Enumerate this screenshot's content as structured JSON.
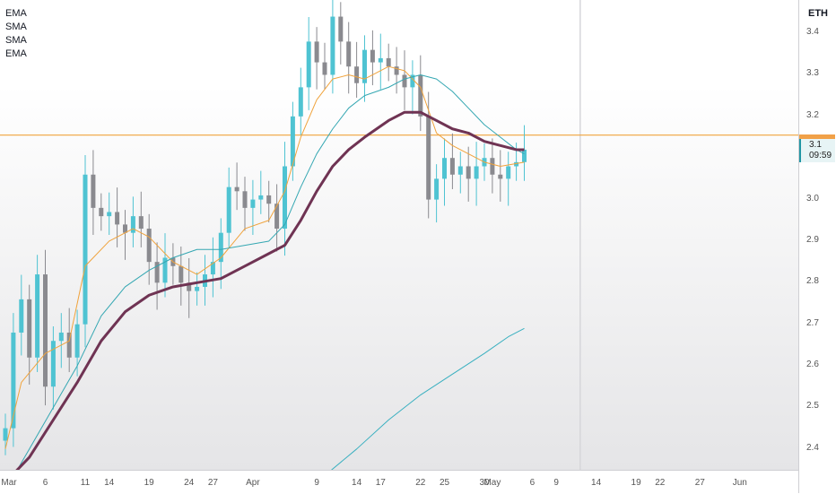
{
  "legend": [
    "EMA",
    "SMA",
    "SMA",
    "EMA"
  ],
  "ticker": "ETH",
  "last_price": "3.1",
  "countdown": "09:59",
  "chart_data": {
    "type": "candlestick",
    "title": "",
    "price_ticks": [
      {
        "value": 3.4,
        "label": "3.4"
      },
      {
        "value": 3.3,
        "label": "3.3"
      },
      {
        "value": 3.2,
        "label": "3.2"
      },
      {
        "value": 3.0,
        "label": "3.0"
      },
      {
        "value": 2.9,
        "label": "2.9"
      },
      {
        "value": 2.8,
        "label": "2.8"
      },
      {
        "value": 2.7,
        "label": "2.7"
      },
      {
        "value": 2.6,
        "label": "2.6"
      },
      {
        "value": 2.5,
        "label": "2.5"
      },
      {
        "value": 2.4,
        "label": "2.4"
      }
    ],
    "ylim": [
      2.35,
      3.48
    ],
    "time_ticks": [
      {
        "day": 0,
        "label": "Mar"
      },
      {
        "day": 5,
        "label": "6"
      },
      {
        "day": 10,
        "label": "11"
      },
      {
        "day": 13,
        "label": "14"
      },
      {
        "day": 18,
        "label": "19"
      },
      {
        "day": 23,
        "label": "24"
      },
      {
        "day": 26,
        "label": "27"
      },
      {
        "day": 31,
        "label": "Apr"
      },
      {
        "day": 39,
        "label": "9"
      },
      {
        "day": 44,
        "label": "14"
      },
      {
        "day": 47,
        "label": "17"
      },
      {
        "day": 52,
        "label": "22"
      },
      {
        "day": 55,
        "label": "25"
      },
      {
        "day": 60,
        "label": "30"
      },
      {
        "day": 61,
        "label": "May"
      },
      {
        "day": 66,
        "label": "6"
      },
      {
        "day": 69,
        "label": "9"
      },
      {
        "day": 74,
        "label": "14"
      },
      {
        "day": 79,
        "label": "19"
      },
      {
        "day": 82,
        "label": "22"
      },
      {
        "day": 87,
        "label": "27"
      },
      {
        "day": 92,
        "label": "Jun"
      }
    ],
    "horizontal_line": 3.155,
    "vertical_marker_day": 72,
    "close_path": [
      [
        0,
        2.45
      ],
      [
        1,
        2.68
      ],
      [
        2,
        2.76
      ],
      [
        3,
        2.62
      ],
      [
        4,
        2.82
      ],
      [
        5,
        2.55
      ],
      [
        6,
        2.66
      ],
      [
        7,
        2.68
      ],
      [
        8,
        2.62
      ],
      [
        9,
        2.7
      ],
      [
        10,
        3.06
      ],
      [
        11,
        2.98
      ],
      [
        12,
        2.96
      ],
      [
        13,
        2.97
      ],
      [
        14,
        2.94
      ],
      [
        15,
        2.92
      ],
      [
        16,
        2.96
      ],
      [
        17,
        2.93
      ],
      [
        18,
        2.85
      ],
      [
        19,
        2.8
      ],
      [
        20,
        2.86
      ],
      [
        21,
        2.84
      ],
      [
        22,
        2.8
      ],
      [
        23,
        2.78
      ],
      [
        24,
        2.79
      ],
      [
        25,
        2.82
      ],
      [
        26,
        2.85
      ],
      [
        27,
        2.92
      ],
      [
        28,
        3.03
      ],
      [
        29,
        3.02
      ],
      [
        30,
        2.98
      ],
      [
        31,
        3.0
      ],
      [
        32,
        3.01
      ],
      [
        33,
        2.99
      ],
      [
        34,
        2.93
      ],
      [
        35,
        3.08
      ],
      [
        36,
        3.2
      ],
      [
        37,
        3.27
      ],
      [
        38,
        3.38
      ],
      [
        39,
        3.33
      ],
      [
        40,
        3.3
      ],
      [
        41,
        3.44
      ],
      [
        42,
        3.38
      ],
      [
        43,
        3.32
      ],
      [
        44,
        3.28
      ],
      [
        45,
        3.36
      ],
      [
        46,
        3.33
      ],
      [
        47,
        3.34
      ],
      [
        48,
        3.32
      ],
      [
        49,
        3.3
      ],
      [
        50,
        3.27
      ],
      [
        51,
        3.3
      ],
      [
        52,
        3.2
      ],
      [
        53,
        3.0
      ],
      [
        54,
        3.05
      ],
      [
        55,
        3.1
      ],
      [
        56,
        3.06
      ],
      [
        57,
        3.08
      ],
      [
        58,
        3.05
      ],
      [
        59,
        3.08
      ],
      [
        60,
        3.1
      ],
      [
        61,
        3.06
      ],
      [
        62,
        3.05
      ],
      [
        63,
        3.08
      ],
      [
        64,
        3.09
      ],
      [
        65,
        3.12
      ]
    ],
    "series": [
      {
        "color": "#f0a33c",
        "width": 1,
        "points": [
          [
            0,
            2.4
          ],
          [
            2,
            2.56
          ],
          [
            5,
            2.63
          ],
          [
            8,
            2.66
          ],
          [
            10,
            2.84
          ],
          [
            13,
            2.9
          ],
          [
            16,
            2.93
          ],
          [
            18,
            2.91
          ],
          [
            21,
            2.85
          ],
          [
            24,
            2.82
          ],
          [
            27,
            2.86
          ],
          [
            30,
            2.93
          ],
          [
            33,
            2.95
          ],
          [
            35,
            3.02
          ],
          [
            37,
            3.15
          ],
          [
            39,
            3.24
          ],
          [
            41,
            3.29
          ],
          [
            43,
            3.3
          ],
          [
            45,
            3.29
          ],
          [
            48,
            3.32
          ],
          [
            50,
            3.31
          ],
          [
            52,
            3.27
          ],
          [
            54,
            3.16
          ],
          [
            56,
            3.13
          ],
          [
            58,
            3.11
          ],
          [
            60,
            3.09
          ],
          [
            62,
            3.08
          ],
          [
            65,
            3.09
          ]
        ]
      },
      {
        "color": "#34a7b2",
        "width": 1,
        "points": [
          [
            0,
            2.3
          ],
          [
            3,
            2.4
          ],
          [
            6,
            2.5
          ],
          [
            9,
            2.6
          ],
          [
            12,
            2.72
          ],
          [
            15,
            2.79
          ],
          [
            18,
            2.83
          ],
          [
            21,
            2.86
          ],
          [
            24,
            2.88
          ],
          [
            27,
            2.88
          ],
          [
            30,
            2.89
          ],
          [
            33,
            2.9
          ],
          [
            35,
            2.94
          ],
          [
            37,
            3.03
          ],
          [
            39,
            3.11
          ],
          [
            41,
            3.17
          ],
          [
            43,
            3.22
          ],
          [
            45,
            3.25
          ],
          [
            48,
            3.27
          ],
          [
            50,
            3.29
          ],
          [
            52,
            3.3
          ],
          [
            54,
            3.29
          ],
          [
            56,
            3.26
          ],
          [
            58,
            3.22
          ],
          [
            60,
            3.18
          ],
          [
            62,
            3.15
          ],
          [
            64,
            3.12
          ],
          [
            65,
            3.11
          ]
        ]
      },
      {
        "color": "#6f3353",
        "width": 3,
        "points": [
          [
            0,
            2.32
          ],
          [
            3,
            2.38
          ],
          [
            6,
            2.47
          ],
          [
            9,
            2.56
          ],
          [
            12,
            2.66
          ],
          [
            15,
            2.73
          ],
          [
            18,
            2.77
          ],
          [
            21,
            2.79
          ],
          [
            24,
            2.8
          ],
          [
            27,
            2.81
          ],
          [
            30,
            2.84
          ],
          [
            33,
            2.87
          ],
          [
            35,
            2.89
          ],
          [
            37,
            2.95
          ],
          [
            39,
            3.02
          ],
          [
            41,
            3.08
          ],
          [
            43,
            3.12
          ],
          [
            45,
            3.15
          ],
          [
            48,
            3.19
          ],
          [
            50,
            3.21
          ],
          [
            52,
            3.21
          ],
          [
            54,
            3.19
          ],
          [
            56,
            3.17
          ],
          [
            58,
            3.16
          ],
          [
            60,
            3.14
          ],
          [
            62,
            3.13
          ],
          [
            64,
            3.12
          ],
          [
            65,
            3.12
          ]
        ]
      },
      {
        "color": "#3ab0c0",
        "width": 1,
        "points": [
          [
            39,
            2.32
          ],
          [
            44,
            2.4
          ],
          [
            48,
            2.47
          ],
          [
            52,
            2.53
          ],
          [
            56,
            2.58
          ],
          [
            60,
            2.63
          ],
          [
            63,
            2.67
          ],
          [
            65,
            2.69
          ]
        ]
      }
    ]
  }
}
